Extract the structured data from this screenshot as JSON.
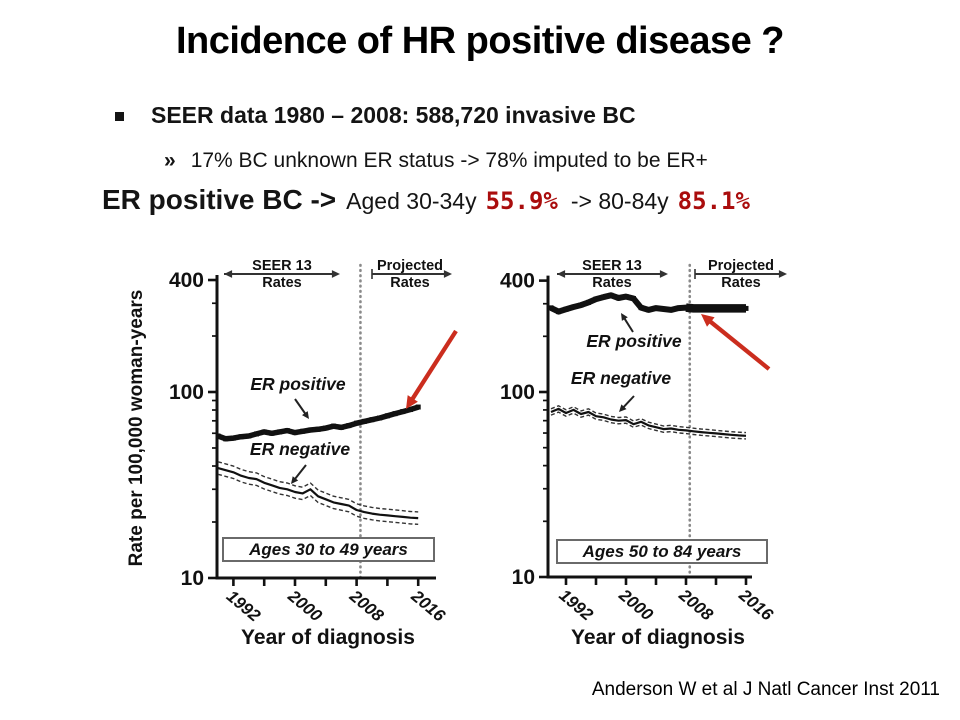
{
  "slide": {
    "title": "Incidence of HR positive disease ?",
    "bullet1": "SEER data 1980 – 2008: 588,720 invasive BC",
    "sub_bullet_marker": "»",
    "sub_bullet": "17% BC unknown ER status -> 78% imputed to be ER+",
    "er_line": {
      "lead": "ER positive BC ->",
      "aged": "Aged 30-34y",
      "pct_young": "55.9%",
      "mid": "-> 80-84y",
      "pct_old": "85.1%"
    },
    "citation": "Anderson W et al J Natl Cancer Inst 2011",
    "colors": {
      "red_text": "#aa0d0d",
      "arrow_red": "#cb2d1e",
      "line_black": "#111111"
    }
  },
  "chart_data": [
    {
      "type": "line",
      "panel": "left",
      "ages_label": "Ages 30 to 49 years",
      "xlabel": "Year of diagnosis",
      "ylabel": "Rate per 100,000 woman-years",
      "y_scale": "log",
      "ylim": [
        10,
        400
      ],
      "y_ticks": [
        400,
        100,
        10
      ],
      "x_ticks": [
        1992,
        1996,
        2000,
        2004,
        2008,
        2012,
        2016
      ],
      "x_tick_labels": [
        "1992",
        "2000",
        "2008",
        "2016"
      ],
      "divider_year": 2008.5,
      "region_labels": {
        "seer": [
          "SEER 13",
          "Rates"
        ],
        "projected": [
          "Projected",
          "Rates"
        ]
      },
      "red_arrow_annotation": true,
      "x": [
        1990,
        1991,
        1992,
        1993,
        1994,
        1995,
        1996,
        1997,
        1998,
        1999,
        2000,
        2001,
        2002,
        2003,
        2004,
        2005,
        2006,
        2007,
        2008,
        2009,
        2010,
        2011,
        2012,
        2013,
        2014,
        2015,
        2016
      ],
      "series": [
        {
          "name": "ER positive",
          "values": [
            58,
            56,
            56.5,
            57.5,
            58,
            59.5,
            61,
            60,
            61,
            62,
            60.5,
            61.5,
            62.5,
            63,
            64,
            65.5,
            64.5,
            66,
            68,
            69.5,
            71,
            72.5,
            74.5,
            76.5,
            78.5,
            80.5,
            83
          ]
        },
        {
          "name": "ER negative",
          "ci_pct": 8,
          "values": [
            39,
            38,
            37,
            35.5,
            34.5,
            34,
            32.5,
            31.5,
            30.5,
            30,
            29,
            28.5,
            30,
            27.5,
            26.5,
            25.5,
            25,
            24.5,
            23.2,
            22.6,
            22.2,
            21.9,
            21.7,
            21.5,
            21.3,
            21.1,
            21
          ]
        }
      ]
    },
    {
      "type": "line",
      "panel": "right",
      "ages_label": "Ages 50 to 84 years",
      "xlabel": "Year of diagnosis",
      "ylabel": "Rate per 100,000 woman-years",
      "y_scale": "log",
      "ylim": [
        10,
        400
      ],
      "y_ticks": [
        400,
        100,
        10
      ],
      "x_ticks": [
        1992,
        1996,
        2000,
        2004,
        2008,
        2012,
        2016
      ],
      "x_tick_labels": [
        "1992",
        "2000",
        "2008",
        "2016"
      ],
      "divider_year": 2008.5,
      "region_labels": {
        "seer": [
          "SEER 13",
          "Rates"
        ],
        "projected": [
          "Projected",
          "Rates"
        ]
      },
      "red_arrow_annotation": true,
      "x": [
        1990,
        1991,
        1992,
        1993,
        1994,
        1995,
        1996,
        1997,
        1998,
        1999,
        2000,
        2001,
        2002,
        2003,
        2004,
        2005,
        2006,
        2007,
        2008,
        2009,
        2010,
        2011,
        2012,
        2013,
        2014,
        2015,
        2016
      ],
      "series": [
        {
          "name": "ER positive",
          "values": [
            285,
            272,
            280,
            288,
            295,
            305,
            318,
            326,
            333,
            322,
            328,
            320,
            286,
            278,
            284,
            281,
            278,
            284,
            286,
            283,
            283,
            283,
            283,
            283,
            283,
            283,
            283
          ]
        },
        {
          "name": "ER negative",
          "ci_pct": 4,
          "values": [
            78,
            81,
            77,
            80,
            76,
            78,
            74,
            73,
            71,
            70,
            70.5,
            67,
            69,
            66,
            64.5,
            63,
            63.5,
            62.5,
            62,
            61.3,
            60.7,
            60.2,
            59.7,
            59.2,
            58.7,
            58.3,
            58
          ]
        }
      ]
    }
  ]
}
